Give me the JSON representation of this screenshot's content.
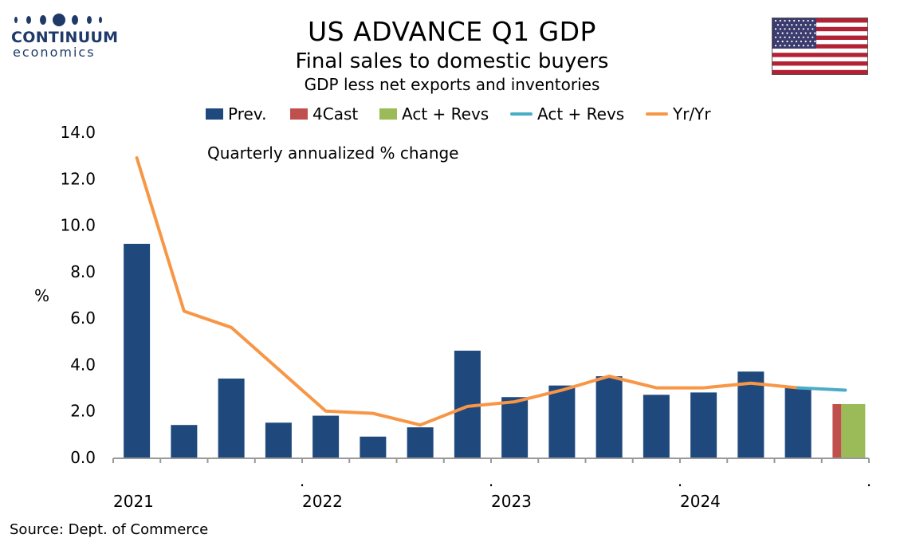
{
  "header": {
    "title": "US ADVANCE Q1 GDP",
    "subtitle": "Final sales to domestic buyers",
    "subtitle2": "GDP less net exports and inventories"
  },
  "logo": {
    "line1": "CONTINUUM",
    "line2": "economics",
    "flag": "us-flag-icon"
  },
  "source": "Source: Dept. of Commerce",
  "chart_data": {
    "type": "bar",
    "annotation": "Quarterly annualized % change",
    "ylabel": "%",
    "ylim": [
      0,
      14
    ],
    "yticks": [
      "0.0",
      "2.0",
      "4.0",
      "6.0",
      "8.0",
      "10.0",
      "12.0",
      "14.0"
    ],
    "xtick_labels": [
      "2021",
      ".",
      "2022",
      ".",
      "2023",
      ".",
      "2024",
      "."
    ],
    "legend": [
      {
        "label": "Prev.",
        "kind": "bar",
        "color": "#1f497d"
      },
      {
        "label": "4Cast",
        "kind": "bar",
        "color": "#c0504d"
      },
      {
        "label": "Act + Revs",
        "kind": "bar",
        "color": "#9bbb59"
      },
      {
        "label": "Act + Revs",
        "kind": "line",
        "color": "#4bacc6"
      },
      {
        "label": "Yr/Yr",
        "kind": "line",
        "color": "#f79646"
      }
    ],
    "series": [
      {
        "name": "Prev.",
        "color": "#1f497d",
        "values": [
          9.2,
          1.4,
          3.4,
          1.5,
          1.8,
          0.9,
          1.3,
          4.6,
          2.6,
          3.1,
          3.5,
          2.7,
          2.8,
          3.7,
          3.0,
          null
        ]
      },
      {
        "name": "4Cast",
        "color": "#c0504d",
        "values": [
          null,
          null,
          null,
          null,
          null,
          null,
          null,
          null,
          null,
          null,
          null,
          null,
          null,
          null,
          null,
          2.3
        ]
      },
      {
        "name": "Act + Revs",
        "color": "#9bbb59",
        "values": [
          null,
          null,
          null,
          null,
          null,
          null,
          null,
          null,
          null,
          null,
          null,
          null,
          null,
          null,
          null,
          2.3
        ]
      },
      {
        "name": "Act + Revs",
        "color": "#4bacc6",
        "kind": "line",
        "values": [
          null,
          null,
          null,
          null,
          null,
          null,
          null,
          null,
          null,
          null,
          null,
          null,
          null,
          null,
          3.0,
          2.9
        ]
      },
      {
        "name": "Yr/Yr",
        "color": "#f79646",
        "kind": "line",
        "values": [
          12.9,
          6.3,
          5.6,
          3.8,
          2.0,
          1.9,
          1.4,
          2.2,
          2.4,
          2.9,
          3.5,
          3.0,
          3.0,
          3.2,
          3.0,
          null
        ]
      }
    ]
  }
}
